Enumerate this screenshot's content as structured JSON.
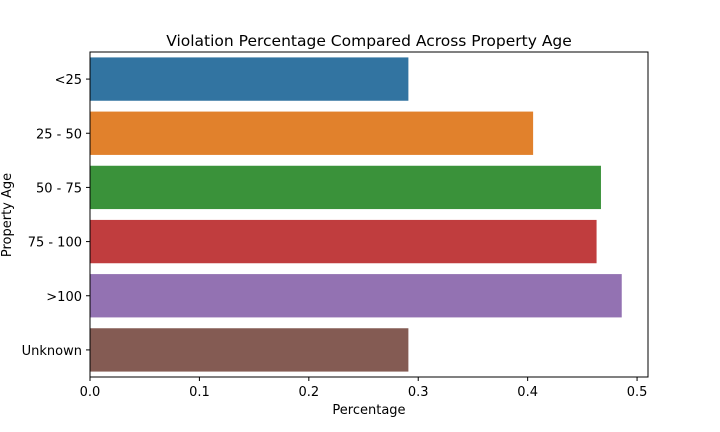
{
  "chart_data": {
    "type": "bar",
    "orientation": "horizontal",
    "title": "Violation Percentage Compared Across Property Age",
    "xlabel": "Percentage",
    "ylabel": "Property Age",
    "categories": [
      "<25",
      "25 - 50",
      "50 - 75",
      "75 - 100",
      ">100",
      "Unknown"
    ],
    "values": [
      0.291,
      0.405,
      0.467,
      0.463,
      0.486,
      0.291
    ],
    "colors": [
      "#3274a1",
      "#e1812c",
      "#3a923a",
      "#c03d3e",
      "#9372b2",
      "#845b53"
    ],
    "xlim": [
      0,
      0.51
    ],
    "xticks": [
      "0.0",
      "0.1",
      "0.2",
      "0.3",
      "0.4",
      "0.5"
    ],
    "grid": false,
    "legend": "none"
  }
}
